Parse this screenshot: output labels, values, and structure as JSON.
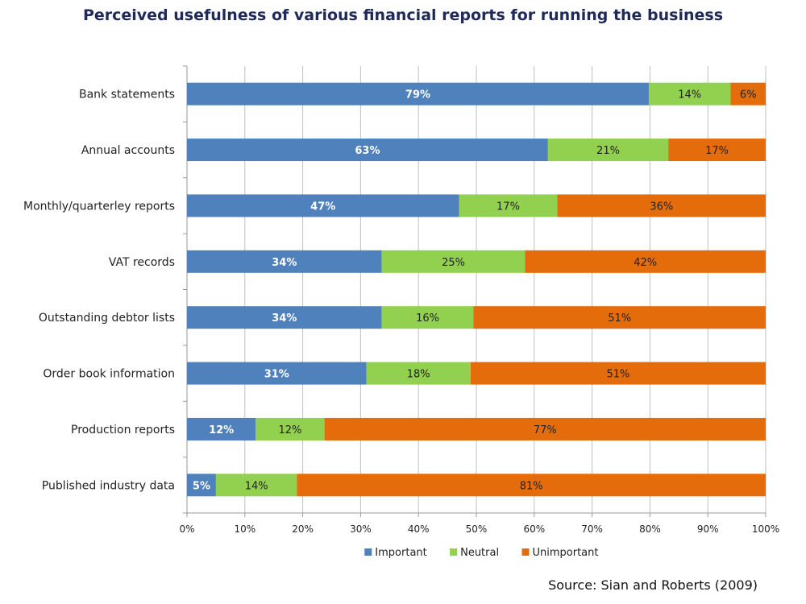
{
  "title": "Perceived usefulness of various financial reports for running the business",
  "source": "Source: Sian and Roberts (2009)",
  "colors": {
    "important": "#4f81bd",
    "neutral": "#92d050",
    "unimportant": "#e46c0a",
    "grid": "#bfbfbf",
    "axis": "#999999",
    "text": "#222222"
  },
  "chart_data": {
    "type": "bar",
    "orientation": "horizontal",
    "stacked": "percent",
    "title": "Perceived usefulness of various financial reports for running the business",
    "categories": [
      "Bank statements",
      "Annual accounts",
      "Monthly/quarterley reports",
      "VAT records",
      "Outstanding debtor lists",
      "Order book information",
      "Production reports",
      "Published industry data"
    ],
    "series": [
      {
        "name": "Important",
        "values": [
          79,
          63,
          47,
          34,
          34,
          31,
          12,
          5
        ]
      },
      {
        "name": "Neutral",
        "values": [
          14,
          21,
          17,
          25,
          16,
          18,
          12,
          14
        ]
      },
      {
        "name": "Unimportant",
        "values": [
          6,
          17,
          36,
          42,
          51,
          51,
          77,
          81
        ]
      }
    ],
    "x_ticks": [
      "0%",
      "10%",
      "20%",
      "30%",
      "40%",
      "50%",
      "60%",
      "70%",
      "80%",
      "90%",
      "100%"
    ],
    "xlim": [
      0,
      100
    ],
    "grid": true,
    "legend": "bottom"
  }
}
